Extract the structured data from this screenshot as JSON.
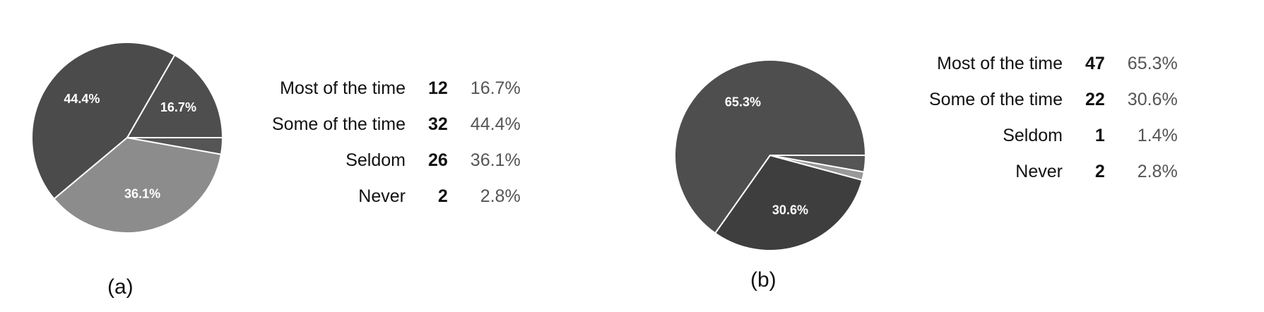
{
  "chart_data": [
    {
      "type": "pie",
      "caption": "(a)",
      "slices": [
        {
          "label": "Most of the time",
          "count": 12,
          "percent": "16.7%",
          "value": 16.7,
          "color": "#4e4e4e",
          "show_label": true
        },
        {
          "label": "Some of the time",
          "count": 32,
          "percent": "44.4%",
          "value": 44.4,
          "color": "#4b4b4b",
          "show_label": true
        },
        {
          "label": "Seldom",
          "count": 26,
          "percent": "36.1%",
          "value": 36.1,
          "color": "#8c8c8c",
          "show_label": true
        },
        {
          "label": "Never",
          "count": 2,
          "percent": "2.8%",
          "value": 2.8,
          "color": "#555555",
          "show_label": false
        }
      ]
    },
    {
      "type": "pie",
      "caption": "(b)",
      "slices": [
        {
          "label": "Most of the time",
          "count": 47,
          "percent": "65.3%",
          "value": 65.3,
          "color": "#4e4e4e",
          "show_label": true
        },
        {
          "label": "Some of the time",
          "count": 22,
          "percent": "30.6%",
          "value": 30.6,
          "color": "#3e3e3e",
          "show_label": true
        },
        {
          "label": "Seldom",
          "count": 1,
          "percent": "1.4%",
          "value": 1.4,
          "color": "#999999",
          "show_label": false
        },
        {
          "label": "Never",
          "count": 2,
          "percent": "2.8%",
          "value": 2.8,
          "color": "#555555",
          "show_label": false
        }
      ]
    }
  ]
}
